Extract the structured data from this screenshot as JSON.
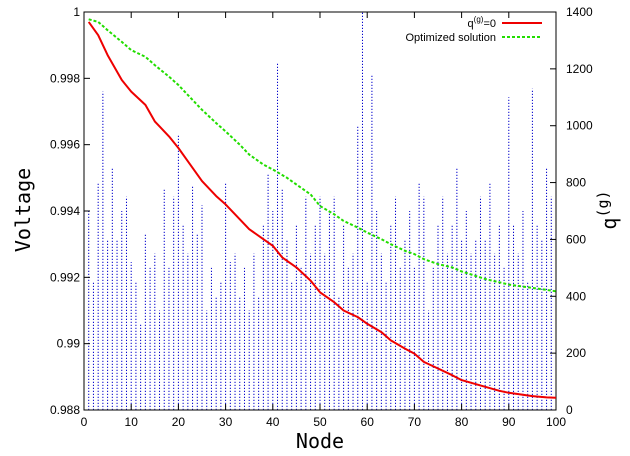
{
  "chart_data": {
    "type": "line",
    "xlabel": "Node",
    "ylabel_left": "Voltage",
    "ylabel_right": "q(g)",
    "xlim": [
      0,
      100
    ],
    "ylim_left": [
      0.988,
      1.0
    ],
    "ylim_right": [
      0,
      1400
    ],
    "x_ticks": [
      "0",
      "10",
      "20",
      "30",
      "40",
      "50",
      "60",
      "70",
      "80",
      "90",
      "100"
    ],
    "y_left_ticks": [
      "0.988",
      "0.99",
      "0.992",
      "0.994",
      "0.996",
      "0.998",
      "1"
    ],
    "y_right_ticks": [
      "0",
      "200",
      "400",
      "600",
      "800",
      "1000",
      "1200",
      "1400"
    ],
    "legend_position": "top-right",
    "series": [
      {
        "name": "q(g)=0",
        "axis": "left",
        "style": "solid",
        "color": "#ee0000",
        "points": [
          [
            1,
            0.9997
          ],
          [
            3,
            0.9993
          ],
          [
            5,
            0.9987
          ],
          [
            8,
            0.99795
          ],
          [
            10,
            0.9976
          ],
          [
            13,
            0.9972
          ],
          [
            15,
            0.9967
          ],
          [
            18,
            0.99625
          ],
          [
            20,
            0.9959
          ],
          [
            22,
            0.9955
          ],
          [
            25,
            0.9949
          ],
          [
            28,
            0.99445
          ],
          [
            30,
            0.9942
          ],
          [
            33,
            0.99375
          ],
          [
            35,
            0.99345
          ],
          [
            38,
            0.99315
          ],
          [
            40,
            0.99295
          ],
          [
            42,
            0.9926
          ],
          [
            45,
            0.9923
          ],
          [
            48,
            0.9919
          ],
          [
            50,
            0.99155
          ],
          [
            53,
            0.99125
          ],
          [
            55,
            0.991
          ],
          [
            58,
            0.9908
          ],
          [
            60,
            0.9906
          ],
          [
            63,
            0.99035
          ],
          [
            65,
            0.9901
          ],
          [
            68,
            0.98985
          ],
          [
            70,
            0.9897
          ],
          [
            72,
            0.98945
          ],
          [
            75,
            0.98925
          ],
          [
            78,
            0.98905
          ],
          [
            80,
            0.9889
          ],
          [
            85,
            0.9887
          ],
          [
            88,
            0.98858
          ],
          [
            90,
            0.98852
          ],
          [
            95,
            0.98842
          ],
          [
            98,
            0.98838
          ],
          [
            100,
            0.98837
          ]
        ]
      },
      {
        "name": "Optimized solution",
        "axis": "left",
        "style": "dashed",
        "color": "#22dd00",
        "points": [
          [
            1,
            0.99978
          ],
          [
            3,
            0.9997
          ],
          [
            5,
            0.99945
          ],
          [
            8,
            0.9991
          ],
          [
            10,
            0.99885
          ],
          [
            13,
            0.99865
          ],
          [
            15,
            0.9984
          ],
          [
            18,
            0.99805
          ],
          [
            20,
            0.9978
          ],
          [
            22,
            0.9975
          ],
          [
            25,
            0.99705
          ],
          [
            28,
            0.99665
          ],
          [
            30,
            0.9964
          ],
          [
            33,
            0.996
          ],
          [
            35,
            0.9957
          ],
          [
            38,
            0.9954
          ],
          [
            40,
            0.99525
          ],
          [
            43,
            0.995
          ],
          [
            45,
            0.9948
          ],
          [
            48,
            0.9945
          ],
          [
            50,
            0.99415
          ],
          [
            53,
            0.9939
          ],
          [
            55,
            0.9937
          ],
          [
            58,
            0.9935
          ],
          [
            60,
            0.99335
          ],
          [
            63,
            0.99315
          ],
          [
            65,
            0.993
          ],
          [
            68,
            0.9928
          ],
          [
            70,
            0.9927
          ],
          [
            72,
            0.99255
          ],
          [
            75,
            0.9924
          ],
          [
            78,
            0.9923
          ],
          [
            80,
            0.99218
          ],
          [
            85,
            0.99195
          ],
          [
            88,
            0.99185
          ],
          [
            90,
            0.99178
          ],
          [
            95,
            0.99168
          ],
          [
            98,
            0.99162
          ],
          [
            100,
            0.99158
          ]
        ]
      },
      {
        "name": "q(g)",
        "axis": "right",
        "style": "impulses-dotted",
        "color": "#0000cc",
        "x": [
          1,
          2,
          3,
          4,
          5,
          6,
          7,
          8,
          9,
          10,
          11,
          12,
          13,
          14,
          15,
          16,
          17,
          18,
          19,
          20,
          21,
          22,
          23,
          24,
          25,
          26,
          27,
          28,
          29,
          30,
          31,
          32,
          33,
          34,
          35,
          36,
          37,
          38,
          39,
          40,
          41,
          42,
          43,
          44,
          45,
          46,
          47,
          48,
          49,
          50,
          51,
          52,
          53,
          54,
          55,
          56,
          57,
          58,
          59,
          60,
          61,
          62,
          63,
          64,
          65,
          66,
          67,
          68,
          69,
          70,
          71,
          72,
          73,
          74,
          75,
          76,
          77,
          78,
          79,
          80,
          81,
          82,
          83,
          84,
          85,
          86,
          87,
          88,
          89,
          90,
          91,
          92,
          93,
          94,
          95,
          96,
          97,
          98,
          99
        ],
        "values": [
          700,
          450,
          800,
          1120,
          600,
          850,
          600,
          700,
          750,
          520,
          450,
          300,
          620,
          500,
          550,
          350,
          780,
          500,
          750,
          970,
          650,
          550,
          790,
          620,
          720,
          350,
          500,
          400,
          450,
          800,
          520,
          550,
          400,
          500,
          350,
          550,
          400,
          650,
          830,
          700,
          1220,
          780,
          600,
          450,
          650,
          500,
          750,
          550,
          650,
          750,
          550,
          700,
          750,
          400,
          650,
          500,
          550,
          1000,
          1400,
          450,
          1180,
          700,
          550,
          450,
          650,
          750,
          500,
          600,
          700,
          500,
          800,
          750,
          350,
          500,
          650,
          750,
          550,
          650,
          850,
          600,
          700,
          550,
          600,
          750,
          600,
          800,
          550,
          650,
          500,
          1100,
          650,
          550,
          700,
          450,
          1130,
          650,
          600,
          850,
          750
        ]
      }
    ]
  }
}
